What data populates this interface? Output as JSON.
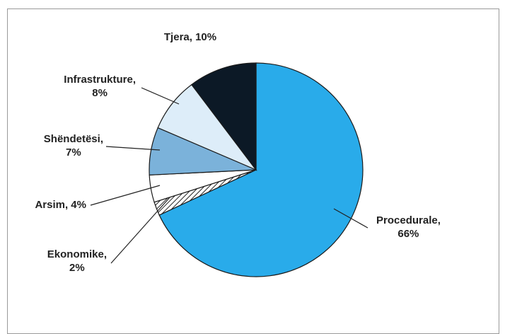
{
  "chart_data": {
    "type": "pie",
    "title": "",
    "slices": [
      {
        "label": "Procedurale",
        "value": 66,
        "text_lines": [
          "Procedurale,",
          "66%"
        ],
        "color": "#29ABEA",
        "pattern": false
      },
      {
        "label": "Ekonomike",
        "value": 2,
        "text_lines": [
          "Ekonomike,",
          "2%"
        ],
        "color": "#ffffff",
        "pattern": true
      },
      {
        "label": "Arsim",
        "value": 4,
        "text_lines": [
          "Arsim, 4%"
        ],
        "color": "#ffffff",
        "pattern": false
      },
      {
        "label": "Shëndetësi",
        "value": 7,
        "text_lines": [
          "Shëndetësi,",
          "7%"
        ],
        "color": "#7BB2DA",
        "pattern": false
      },
      {
        "label": "Infrastrukture",
        "value": 8,
        "text_lines": [
          "Infrastrukture,",
          "8%"
        ],
        "color": "#DDEDF9",
        "pattern": false
      },
      {
        "label": "Tjera",
        "value": 10,
        "text_lines": [
          "Tjera, 10%"
        ],
        "color": "#0C1926",
        "pattern": false
      }
    ],
    "legend": "none",
    "border_color": "#1a1a1a"
  }
}
